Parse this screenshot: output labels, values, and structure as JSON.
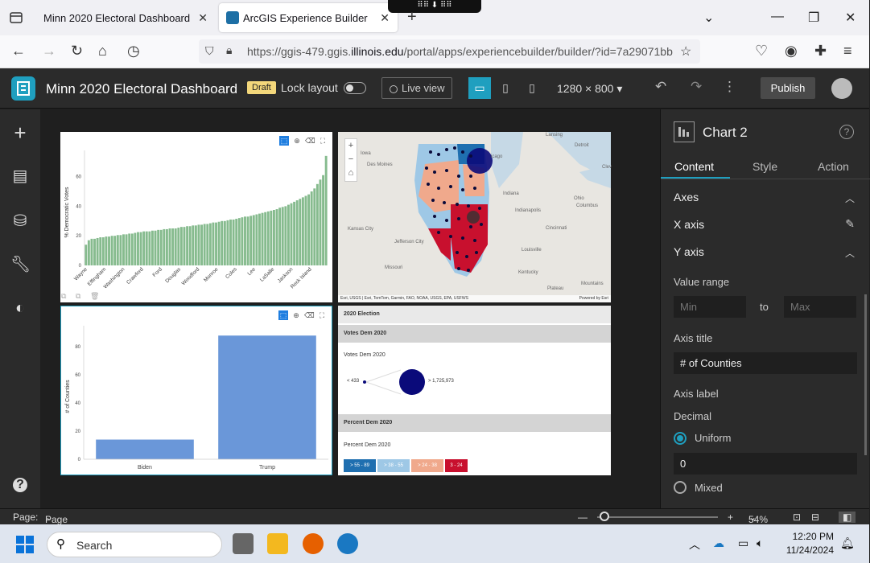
{
  "browser": {
    "tabs": [
      {
        "title": "Minn 2020 Electoral Dashboard"
      },
      {
        "title": "ArcGIS Experience Builder"
      }
    ],
    "url_host_prefix": "https://ggis-479.ggis.",
    "url_host_main": "illinois.edu",
    "url_path": "/portal/apps/experiencebuilder/builder/?id=7a29071bb"
  },
  "app": {
    "title": "Minn 2020 Electoral Dashboard",
    "draft_label": "Draft",
    "lock_layout_label": "Lock layout",
    "live_view_label": "Live view",
    "resolution": "1280 × 800",
    "publish_label": "Publish"
  },
  "bar_chart_top": {
    "chart_data": {
      "type": "bar",
      "ylabel": "% Democratic Votes",
      "ylim": [
        0,
        75
      ],
      "yticks": [
        0,
        20,
        40,
        60
      ],
      "xtick_labels": [
        "Wayne",
        "Effingham",
        "Washington",
        "Crawford",
        "Ford",
        "Douglas",
        "Woodford",
        "Monroe",
        "Coles",
        "Lee",
        "LaSalle",
        "Jackson",
        "Rock Island"
      ],
      "values": [
        14,
        17,
        18,
        18,
        18.5,
        19,
        19,
        19.5,
        19.5,
        20,
        20,
        20.5,
        20.5,
        21,
        21,
        21.5,
        21.5,
        22,
        22.5,
        22.5,
        23,
        23,
        23,
        23.5,
        23.5,
        24,
        24,
        24.5,
        24.5,
        25,
        25,
        25,
        25.5,
        26,
        26,
        26.5,
        26.5,
        27,
        27,
        27.5,
        27.5,
        28,
        28,
        28.5,
        29,
        29,
        29.5,
        30,
        30,
        30.5,
        31,
        31,
        31.5,
        32,
        32.5,
        33,
        33,
        33.5,
        34,
        34.5,
        35,
        35.5,
        36,
        36.5,
        37,
        37.5,
        38,
        39,
        39.5,
        40,
        41,
        42,
        43,
        44,
        45,
        46,
        47,
        48,
        50,
        52,
        55,
        58,
        61,
        74
      ],
      "color": "#86bb8e"
    }
  },
  "bar_chart_bottom": {
    "chart_data": {
      "type": "bar",
      "categories": [
        "Biden",
        "Trump"
      ],
      "values": [
        14,
        88
      ],
      "ylabel": "# of Counties",
      "ylim": [
        0,
        95
      ],
      "yticks": [
        0,
        20,
        40,
        60,
        80
      ],
      "color": "#6a97d9"
    }
  },
  "map": {
    "labels": [
      "Lansing",
      "Detroit",
      "Iowa",
      "Des Moines",
      "icago",
      "Clev",
      "Indiana",
      "Ohio",
      "Columbus",
      "Indianapolis",
      "Kansas City",
      "Jefferson City",
      "Cincinnati",
      "Louisville",
      "Missouri",
      "Kentucky",
      "Plateau",
      "Mountains"
    ],
    "attribution": "Esri, USGS | Esri, TomTom, Garmin, FAO, NOAA, USGS, EPA, USFWS",
    "powered_by": "Powered by Esri"
  },
  "legend": {
    "header": "2020 Election",
    "section1_title": "Votes Dem 2020",
    "section1_sub": "Votes Dem 2020",
    "size_min": "< 433",
    "size_max": "> 1,725,973",
    "section2_title": "Percent Dem 2020",
    "section2_sub": "Percent Dem 2020",
    "classes": [
      {
        "label": "> 55 - 89",
        "color": "#1f6fb0"
      },
      {
        "label": "> 38 - 55",
        "color": "#9ec8e6"
      },
      {
        "label": "> 24 - 38",
        "color": "#f0a98c"
      },
      {
        "label": "3 - 24",
        "color": "#c8102e"
      }
    ]
  },
  "panel": {
    "title": "Chart 2",
    "tabs": [
      "Content",
      "Style",
      "Action"
    ],
    "axes_label": "Axes",
    "x_axis_label": "X axis",
    "y_axis_label": "Y axis",
    "value_range_label": "Value range",
    "min_placeholder": "Min",
    "to_label": "to",
    "max_placeholder": "Max",
    "axis_title_label": "Axis title",
    "axis_title_value": "# of Counties",
    "axis_label_label": "Axis label",
    "decimal_label": "Decimal",
    "uniform_label": "Uniform",
    "decimal_value": "0",
    "mixed_label": "Mixed"
  },
  "footer": {
    "page_label": "Page:",
    "page_value": "Page",
    "zoom": "54%"
  },
  "taskbar": {
    "search_placeholder": "Search",
    "time": "12:20 PM",
    "date": "11/24/2024"
  }
}
